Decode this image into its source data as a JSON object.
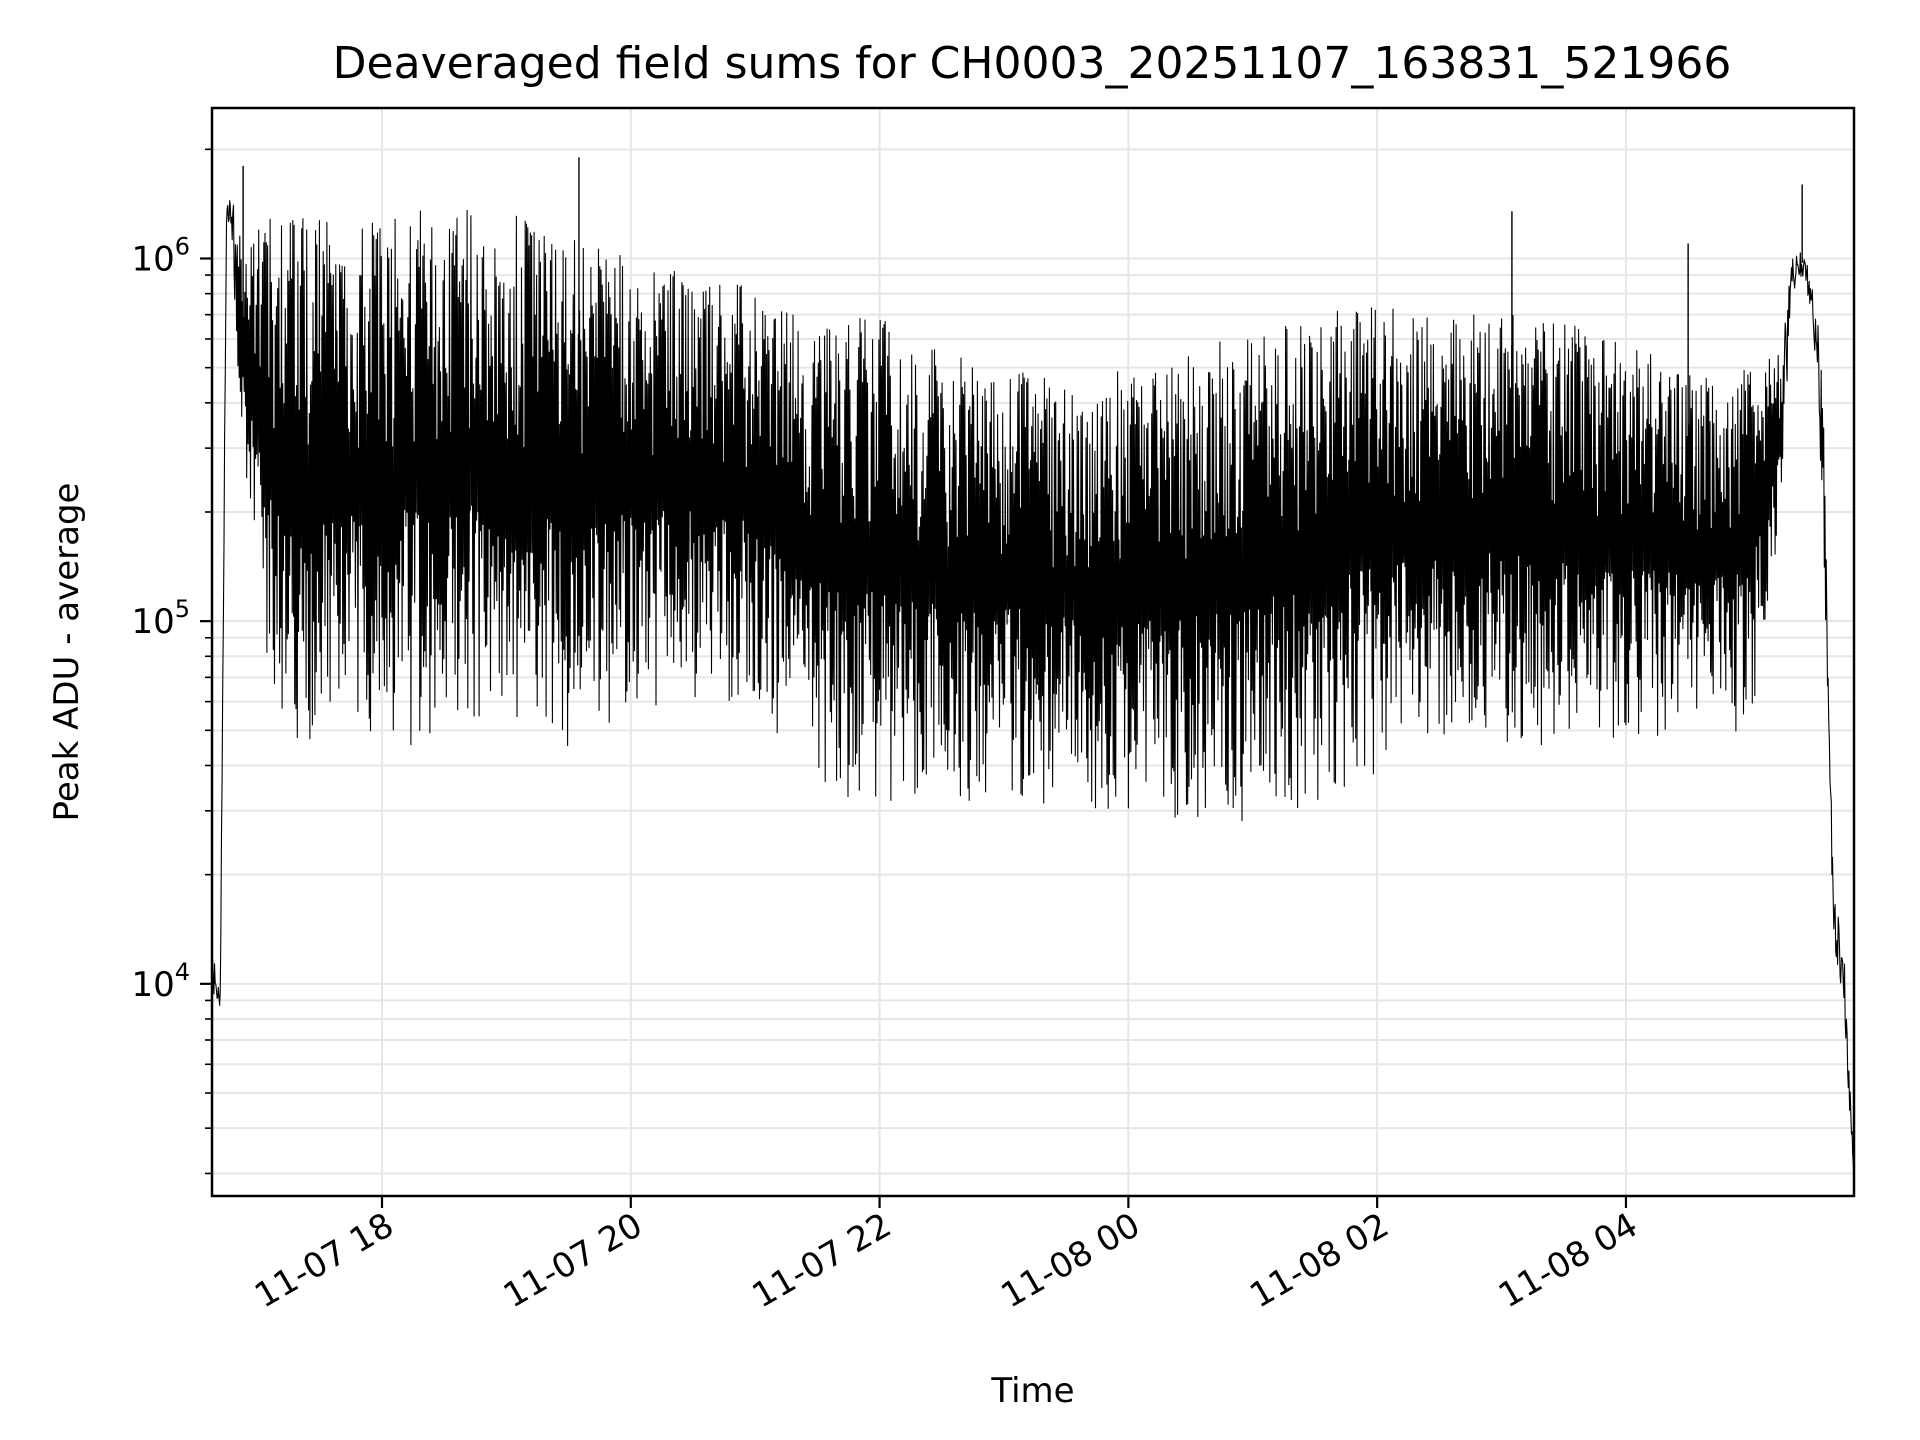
{
  "chart_data": {
    "type": "line",
    "title": "Deaveraged field sums for CH0003_20251107_163831_521966",
    "xlabel": "Time",
    "ylabel": "Peak ADU - average",
    "yscale": "log",
    "grid": true,
    "legend": "none",
    "line_color": "#000000",
    "grid_color": "#e6e6e6",
    "xlim": [
      "2025-11-07 16:38",
      "2025-11-08 05:50"
    ],
    "ylim": [
      2600,
      2600000
    ],
    "x_ticks": [
      {
        "value": "2025-11-07 18:00",
        "label": "11-07 18"
      },
      {
        "value": "2025-11-07 20:00",
        "label": "11-07 20"
      },
      {
        "value": "2025-11-07 22:00",
        "label": "11-07 22"
      },
      {
        "value": "2025-11-08 00:00",
        "label": "11-08 00"
      },
      {
        "value": "2025-11-08 02:00",
        "label": "11-08 02"
      },
      {
        "value": "2025-11-08 04:00",
        "label": "11-08 04"
      }
    ],
    "y_ticks": [
      {
        "value": 10000,
        "base": "10",
        "exp": "4"
      },
      {
        "value": 100000,
        "base": "10",
        "exp": "5"
      },
      {
        "value": 1000000,
        "base": "10",
        "exp": "6"
      }
    ],
    "series": [
      {
        "x": [
          "2025-11-07 16:38",
          "2025-11-07 16:42",
          "2025-11-07 16:45",
          "2025-11-07 16:47",
          "2025-11-07 16:50",
          "2025-11-07 16:55",
          "2025-11-07 17:05",
          "2025-11-07 17:15",
          "2025-11-07 17:30",
          "2025-11-07 17:45",
          "2025-11-07 18:00",
          "2025-11-07 18:30",
          "2025-11-07 19:00",
          "2025-11-07 19:30",
          "2025-11-07 20:00",
          "2025-11-07 20:30",
          "2025-11-07 21:00",
          "2025-11-07 21:30",
          "2025-11-07 22:00",
          "2025-11-07 22:30",
          "2025-11-07 23:00",
          "2025-11-07 23:30",
          "2025-11-08 00:00",
          "2025-11-08 00:30",
          "2025-11-08 01:00",
          "2025-11-08 01:30",
          "2025-11-08 02:00",
          "2025-11-08 02:30",
          "2025-11-08 03:00",
          "2025-11-08 03:30",
          "2025-11-08 04:00",
          "2025-11-08 04:30",
          "2025-11-08 05:00",
          "2025-11-08 05:15",
          "2025-11-08 05:20",
          "2025-11-08 05:25",
          "2025-11-08 05:30",
          "2025-11-08 05:35",
          "2025-11-08 05:40",
          "2025-11-08 05:45",
          "2025-11-08 05:50"
        ],
        "y_high": [
          12000,
          11000,
          1400000,
          1500000,
          1350000,
          1200000,
          1300000,
          1350000,
          1300000,
          1250000,
          1300000,
          1400000,
          1350000,
          1150000,
          1000000,
          900000,
          850000,
          650000,
          700000,
          550000,
          500000,
          480000,
          500000,
          550000,
          650000,
          700000,
          750000,
          700000,
          700000,
          680000,
          600000,
          480000,
          500000,
          550000,
          1000000,
          1050000,
          900000,
          500000,
          18000,
          13000,
          3000
        ],
        "y_low": [
          9500,
          8500,
          1200000,
          1300000,
          500000,
          200000,
          60000,
          40000,
          45000,
          50000,
          45000,
          45000,
          45000,
          45000,
          55000,
          60000,
          55000,
          35000,
          30000,
          30000,
          32000,
          30000,
          27000,
          26000,
          28000,
          30000,
          38000,
          45000,
          45000,
          45000,
          45000,
          48000,
          50000,
          200000,
          800000,
          900000,
          700000,
          200000,
          13000,
          9000,
          2600
        ],
        "spikes": [
          {
            "x": "2025-11-07 16:53",
            "y": 1800000
          },
          {
            "x": "2025-11-07 19:35",
            "y": 1900000
          },
          {
            "x": "2025-11-08 03:05",
            "y": 1350000
          },
          {
            "x": "2025-11-08 04:30",
            "y": 1100000
          },
          {
            "x": "2025-11-08 05:25",
            "y": 1600000
          }
        ]
      }
    ]
  }
}
